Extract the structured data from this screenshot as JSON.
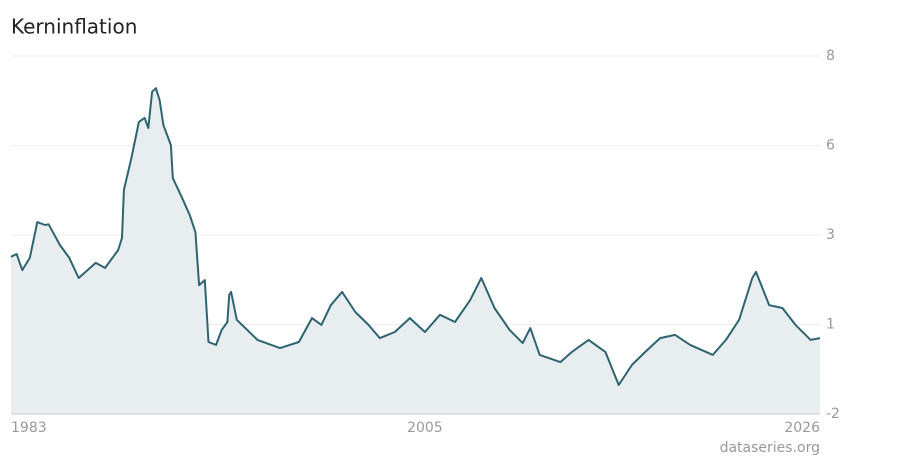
{
  "chart_data": {
    "type": "area",
    "title": "Kerninflation",
    "source": "dataseries.org",
    "color": "#2e6470",
    "fill": "#e8eef0",
    "grid": true,
    "x": [
      1983.0,
      1983.3,
      1983.6,
      1984.0,
      1984.4,
      1984.8,
      1985.0,
      1985.6,
      1986.1,
      1986.6,
      1987.5,
      1988.0,
      1988.7,
      1988.9,
      1989.0,
      1989.4,
      1989.8,
      1990.1,
      1990.3,
      1990.5,
      1990.7,
      1990.9,
      1991.1,
      1991.5,
      1991.6,
      1992.1,
      1992.5,
      1992.8,
      1993.0,
      1993.3,
      1993.5,
      1993.9,
      1994.2,
      1994.5,
      1994.6,
      1994.7,
      1995.0,
      1996.1,
      1997.3,
      1998.3,
      1999.0,
      1999.5,
      2000.0,
      2000.6,
      2001.3,
      2002.0,
      2002.6,
      2003.4,
      2004.2,
      2005.0,
      2005.8,
      2006.6,
      2007.4,
      2008.0,
      2008.7,
      2009.5,
      2010.2,
      2010.6,
      2011.1,
      2012.2,
      2012.8,
      2013.7,
      2014.6,
      2015.3,
      2016.0,
      2016.7,
      2017.5,
      2018.3,
      2019.1,
      2020.3,
      2021.0,
      2021.7,
      2022.4,
      2022.6,
      2023.3,
      2024.0,
      2024.7,
      2025.5,
      2026.0
    ],
    "values": [
      2.39,
      2.47,
      2.02,
      2.36,
      3.36,
      3.28,
      3.3,
      2.72,
      2.36,
      1.8,
      2.22,
      2.08,
      2.58,
      2.92,
      4.26,
      5.15,
      6.16,
      6.27,
      5.99,
      7.0,
      7.1,
      6.77,
      6.07,
      5.51,
      4.59,
      4.03,
      3.56,
      3.08,
      1.6,
      1.74,
      0.01,
      -0.07,
      0.35,
      0.57,
      1.32,
      1.41,
      0.63,
      0.07,
      -0.16,
      0.01,
      0.68,
      0.49,
      1.04,
      1.41,
      0.85,
      0.49,
      0.12,
      0.29,
      0.68,
      0.29,
      0.77,
      0.57,
      1.18,
      1.8,
      0.96,
      0.35,
      -0.02,
      0.4,
      -0.35,
      -0.55,
      -0.27,
      0.07,
      -0.27,
      -1.19,
      -0.63,
      -0.27,
      0.12,
      0.21,
      -0.07,
      -0.35,
      0.07,
      0.63,
      1.8,
      1.97,
      1.04,
      0.96,
      0.49,
      0.07,
      0.12
    ],
    "xlim": [
      1983,
      2026
    ],
    "xticks": [
      1983,
      2005,
      2026
    ],
    "ylim": [
      -2,
      8
    ],
    "yticks": [
      -2,
      {
        "value": 0.5,
        "label": "1"
      },
      3,
      {
        "value": 5.5,
        "label": "6"
      },
      8
    ]
  }
}
